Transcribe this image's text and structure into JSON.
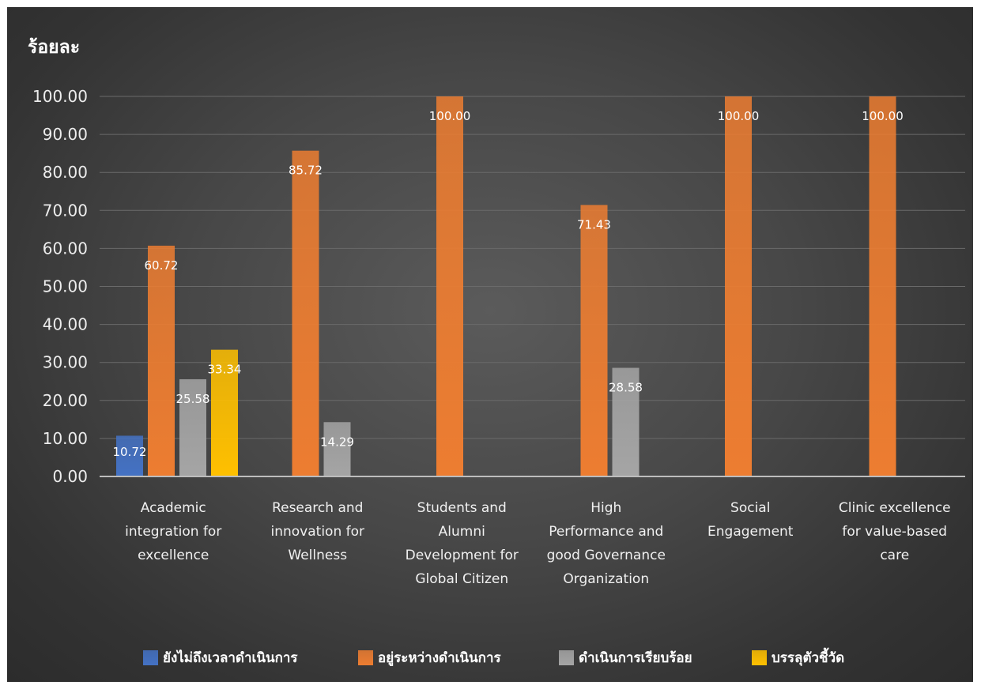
{
  "chart_data": {
    "type": "bar",
    "ylabel": "ร้อยละ",
    "ylim": [
      0,
      100
    ],
    "yticks": [
      "0.00",
      "10.00",
      "20.00",
      "30.00",
      "40.00",
      "50.00",
      "60.00",
      "70.00",
      "80.00",
      "90.00",
      "100.00"
    ],
    "grid": true,
    "legend_position": "bottom",
    "categories": [
      [
        "Academic",
        "integration for",
        "excellence"
      ],
      [
        "Research and",
        "innovation for",
        "Wellness"
      ],
      [
        "Students and",
        "Alumni",
        "Development for",
        "Global Citizen"
      ],
      [
        "High",
        "Performance and",
        "good Governance",
        "Organization"
      ],
      [
        "Social",
        "Engagement"
      ],
      [
        "Clinic excellence",
        "for value-based",
        "care"
      ]
    ],
    "series": [
      {
        "name": "ยังไม่ถึงเวลาดำเนินการ",
        "color": "#4472c4",
        "values": [
          10.72,
          null,
          null,
          null,
          null,
          null
        ],
        "labels": [
          "10.72",
          null,
          null,
          null,
          null,
          null
        ]
      },
      {
        "name": "อยู่ระหว่างดำเนินการ",
        "color": "#ed7d31",
        "values": [
          60.72,
          85.72,
          100,
          71.43,
          100,
          100
        ],
        "labels": [
          "60.72",
          "85.72",
          "100.00",
          "71.43",
          "100.00",
          "100.00"
        ]
      },
      {
        "name": "ดำเนินการเรียบร้อย",
        "color": "#a5a5a5",
        "values": [
          25.58,
          14.29,
          null,
          28.58,
          null,
          null
        ],
        "labels": [
          "25.58",
          "14.29",
          null,
          "28.58",
          null,
          null
        ]
      },
      {
        "name": "บรรลุตัวชี้วัด",
        "color": "#ffc000",
        "values": [
          33.34,
          null,
          null,
          null,
          null,
          null
        ],
        "labels": [
          "33.34",
          null,
          null,
          null,
          null,
          null
        ]
      }
    ]
  }
}
